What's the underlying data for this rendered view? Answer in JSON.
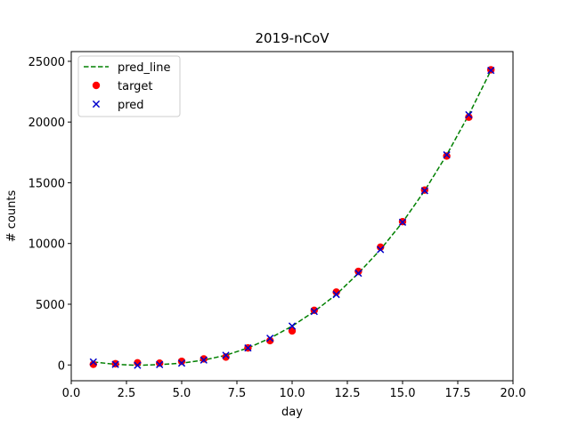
{
  "chart_data": {
    "type": "scatter",
    "title": "2019-nCoV",
    "xlabel": "day",
    "ylabel": "# counts",
    "xlim": [
      0.0,
      20.0
    ],
    "ylim": [
      -1300,
      25800
    ],
    "xticks": [
      0.0,
      2.5,
      5.0,
      7.5,
      10.0,
      12.5,
      15.0,
      17.5,
      20.0
    ],
    "xtick_labels": [
      "0.0",
      "2.5",
      "5.0",
      "7.5",
      "10.0",
      "12.5",
      "15.0",
      "17.5",
      "20.0"
    ],
    "yticks": [
      0,
      5000,
      10000,
      15000,
      20000,
      25000
    ],
    "ytick_labels": [
      "0",
      "5000",
      "10000",
      "15000",
      "20000",
      "25000"
    ],
    "grid": false,
    "legend_position": "top-left",
    "x": [
      1,
      2,
      3,
      4,
      5,
      6,
      7,
      8,
      9,
      10,
      11,
      12,
      13,
      14,
      15,
      16,
      17,
      18,
      19
    ],
    "series": [
      {
        "name": "pred_line",
        "kind": "line",
        "style": "dashed",
        "color": "#008000",
        "values": [
          250,
          50,
          -30,
          30,
          150,
          400,
          800,
          1400,
          2200,
          3200,
          4400,
          5800,
          7550,
          9500,
          11750,
          14350,
          17300,
          20600,
          24250
        ]
      },
      {
        "name": "target",
        "kind": "scatter",
        "marker": "circle",
        "color": "#ff0000",
        "values": [
          50,
          100,
          180,
          150,
          300,
          500,
          650,
          1400,
          2000,
          2800,
          4500,
          6000,
          7700,
          9700,
          11800,
          14400,
          17200,
          20400,
          24300
        ]
      },
      {
        "name": "pred",
        "kind": "scatter",
        "marker": "x",
        "color": "#0000cc",
        "values": [
          250,
          50,
          -30,
          30,
          150,
          400,
          800,
          1400,
          2200,
          3200,
          4400,
          5800,
          7550,
          9500,
          11750,
          14350,
          17300,
          20600,
          24250
        ]
      }
    ]
  }
}
